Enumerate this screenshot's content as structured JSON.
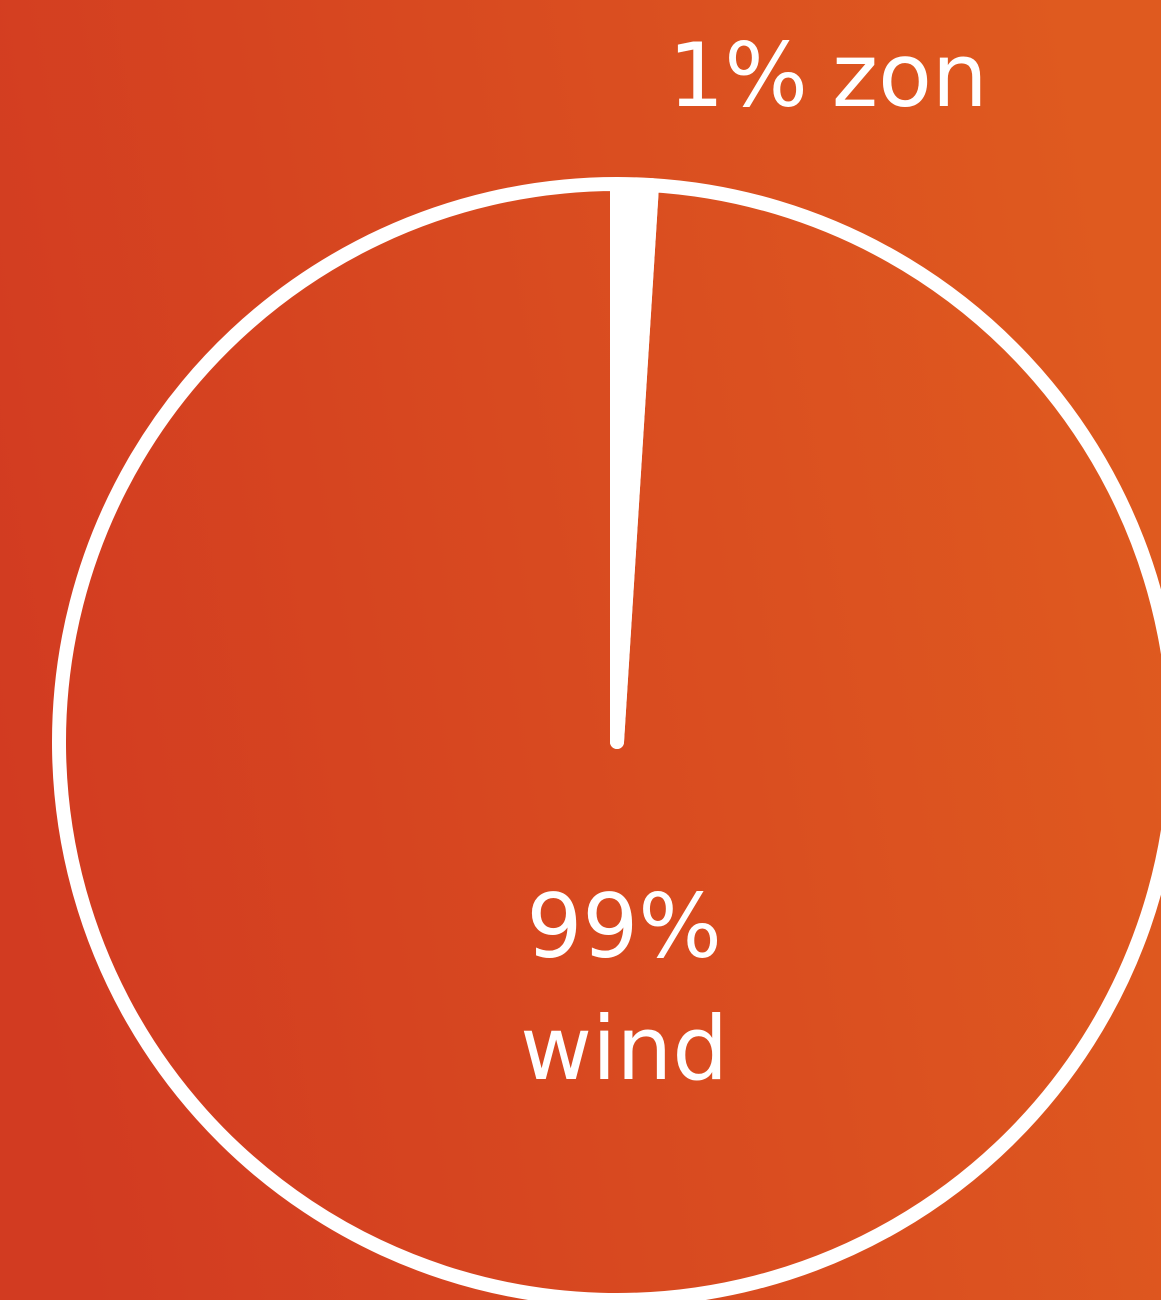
{
  "chart_data": {
    "type": "pie",
    "categories": [
      "zon",
      "wind"
    ],
    "values": [
      1,
      99
    ],
    "value_labels": [
      "1%",
      "99%"
    ],
    "color": "#ffffff"
  }
}
